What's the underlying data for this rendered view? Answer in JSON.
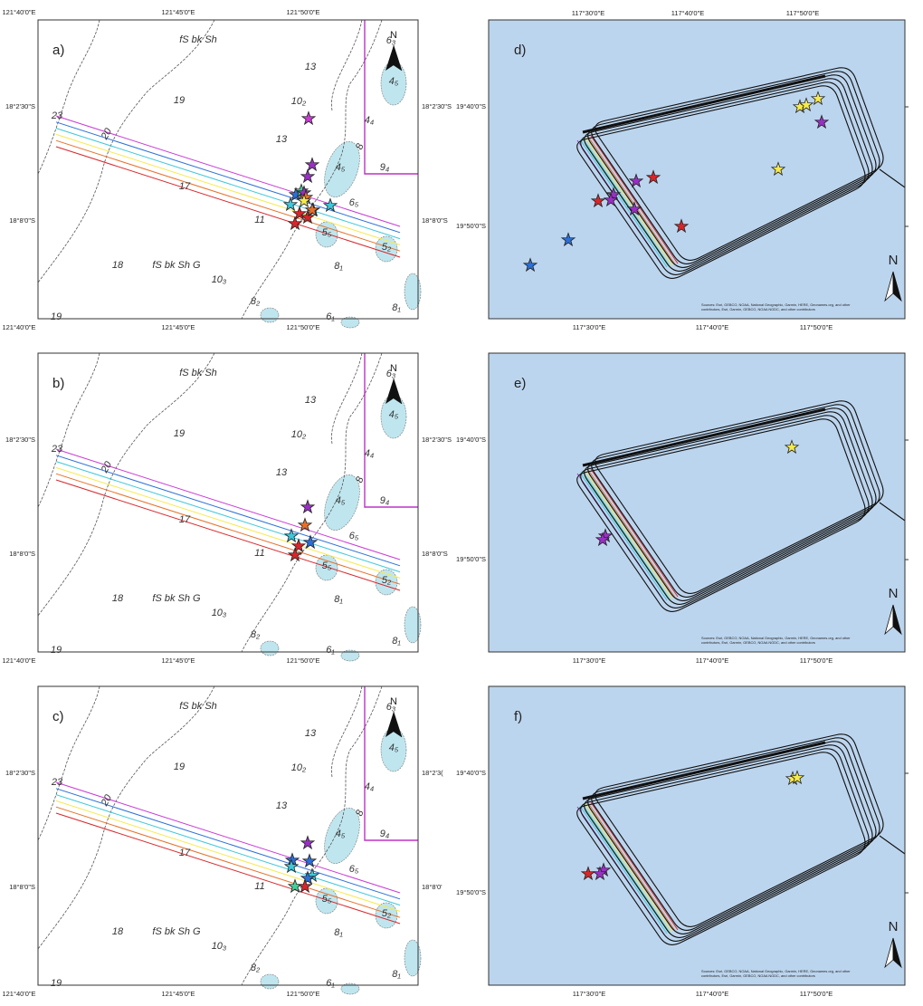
{
  "nautical_panels": [
    {
      "label": "a)",
      "top_ticks": [
        "121°40'0\"E",
        "121°45'0\"E",
        "121°50'0\"E"
      ],
      "bottom_ticks": [
        "121°40'0\"E",
        "121°45'0\"E",
        "121°50'0\"E"
      ],
      "left_ticks": [
        "18°2'30\"S",
        "18°8'0\"S"
      ],
      "right_ticks": [
        "18°2'30\"S",
        "18°8'0\"S"
      ]
    },
    {
      "label": "b)",
      "bottom_ticks": [
        "121°40'0\"E",
        "121°45'0\"E",
        "121°50'0\"E"
      ],
      "left_ticks": [
        "18°2'30\"S",
        "18°8'0\"S"
      ],
      "right_ticks": [
        "18°2'30\"S",
        "18°8'0\"S"
      ]
    },
    {
      "label": "c)",
      "bottom_ticks": [
        "121°40'0\"E",
        "121°45'0\"E",
        "121°50'0\"E"
      ],
      "left_ticks": [
        "18°2'30\"S",
        "18°8'0\"S"
      ],
      "right_ticks": [
        "18°2'3(",
        "18°8'0'"
      ]
    }
  ],
  "chart_soundings": [
    "6₃",
    "13",
    "4₅",
    "19",
    "10₂",
    "23",
    "4₄",
    "13",
    "4₅",
    "9₄",
    "17",
    "6₅",
    "11",
    "5₅",
    "5₂",
    "18",
    "fS bk Sh G",
    "8₁",
    "10₃",
    "8₂",
    "6₁",
    "8₁",
    "19",
    "fS bk Sh",
    "20",
    "8"
  ],
  "north": "N",
  "satellite_panels": [
    {
      "label": "d)",
      "top_ticks": [
        "117°30'0\"E",
        "117°40'0\"E",
        "117°50'0\"E"
      ],
      "bottom_ticks": [
        "117°30'0\"E",
        "117°40'0\"E",
        "117°50'0\"E"
      ],
      "left_ticks": [
        "19°40'0\"S",
        "19°50'0\"S"
      ]
    },
    {
      "label": "e)",
      "bottom_ticks": [
        "117°30'0\"E",
        "117°40'0\"E",
        "117°50'0\"E"
      ],
      "left_ticks": [
        "19°40'0\"S",
        "19°50'0\"S"
      ]
    },
    {
      "label": "f)",
      "bottom_ticks": [
        "117°30'0\"E",
        "117°40'0\"E",
        "117°50'0\"E"
      ],
      "left_ticks": [
        "19°40'0\"S",
        "19°50'0\"S"
      ]
    }
  ],
  "attribution": [
    "Sources: Esri, GEBCO, NOAA, National Geographic, Garmin, HERE, Geonames.org, and other",
    "contributors, Esri, Garmin, GEBCO, NOAA NGDC, and other contributors"
  ]
}
